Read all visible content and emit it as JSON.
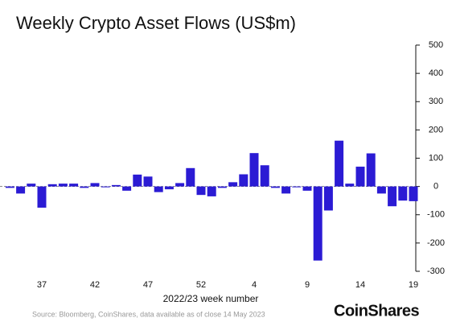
{
  "chart_data": {
    "type": "bar",
    "title": "Weekly Crypto Asset Flows (US$m)",
    "x_label": "2022/23 week number",
    "source": "Source: Bloomberg, CoinShares, data available as of close 14 May 2023",
    "brand": "CoinShares",
    "categories": [
      null,
      null,
      null,
      "37",
      null,
      null,
      null,
      null,
      "42",
      null,
      null,
      null,
      null,
      "47",
      null,
      null,
      null,
      null,
      "52",
      null,
      null,
      null,
      null,
      "4",
      null,
      null,
      null,
      null,
      "9",
      null,
      null,
      null,
      null,
      "14",
      null,
      null,
      null,
      null,
      "19"
    ],
    "values": [
      -5,
      -25,
      10,
      -75,
      8,
      10,
      10,
      -5,
      12,
      -3,
      5,
      -15,
      42,
      35,
      -20,
      -10,
      12,
      65,
      -30,
      -35,
      -5,
      15,
      43,
      118,
      75,
      -5,
      -25,
      -3,
      -15,
      -262,
      -85,
      162,
      10,
      70,
      117,
      -25,
      -70,
      -50,
      -52
    ],
    "color": "#2b1bd4",
    "ylim": [
      -300,
      500
    ],
    "yticks": [
      -300,
      -200,
      -100,
      0,
      100,
      200,
      300,
      400,
      500
    ]
  }
}
